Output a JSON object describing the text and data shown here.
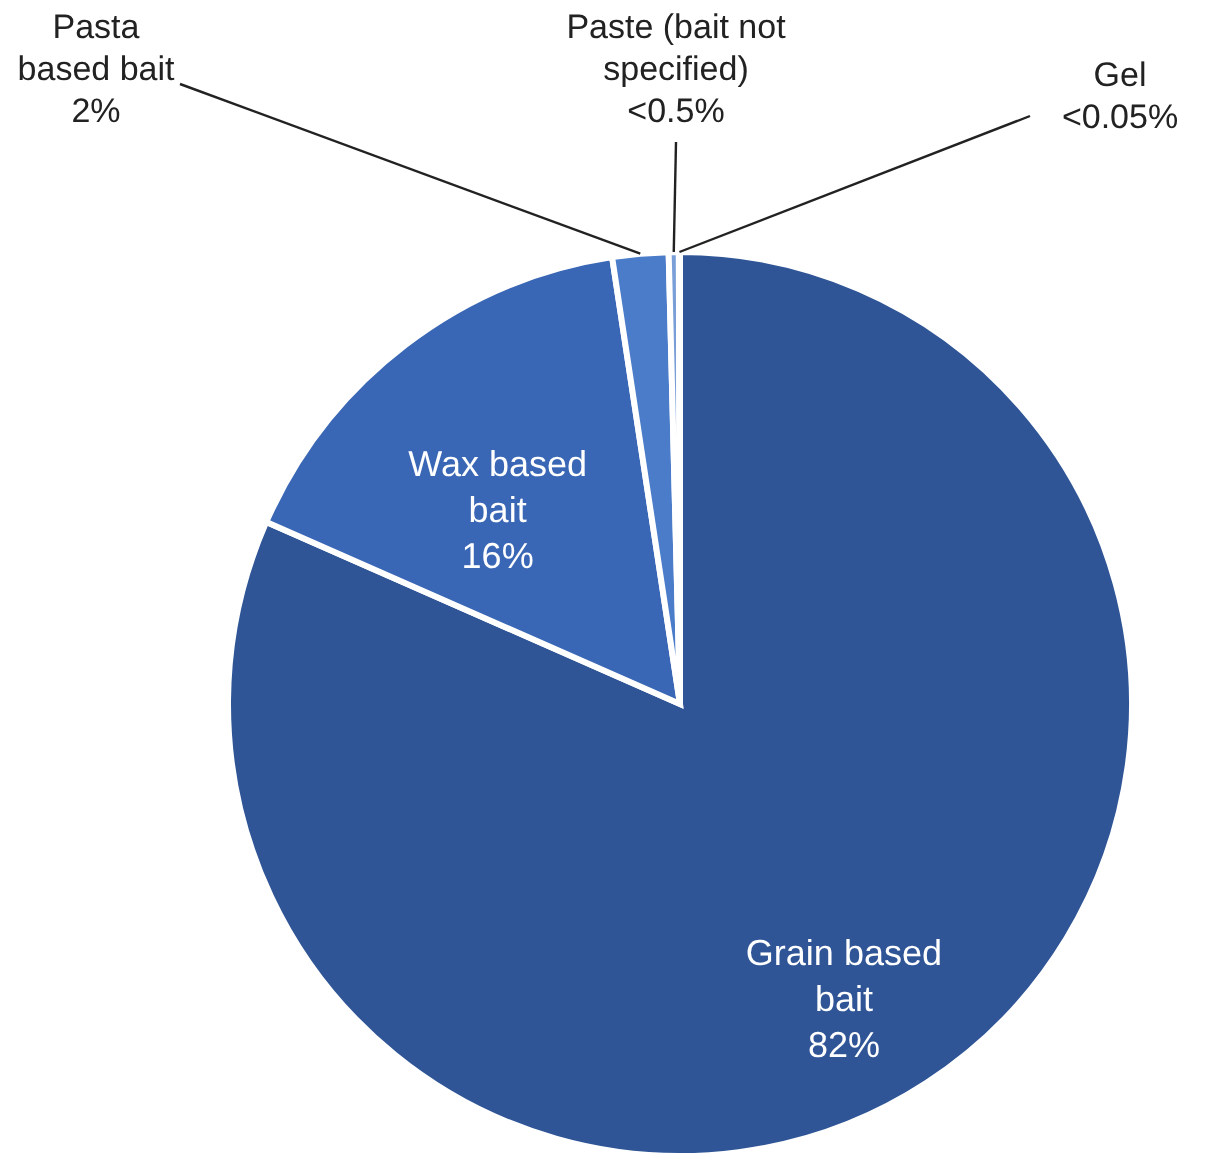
{
  "chart_data": {
    "type": "pie",
    "categories": [
      "Grain based bait",
      "Wax based bait",
      "Pasta based bait",
      "Paste (bait not specified)",
      "Gel"
    ],
    "values": [
      81.6,
      16,
      2,
      0.36,
      0.04
    ],
    "colors": [
      "#2f5597",
      "#3a67b5",
      "#4a7cc9",
      "#7a9fd8",
      "#a9c1e8"
    ],
    "value_labels": [
      "82%",
      "16%",
      "2%",
      "<0.5%",
      "<0.05%"
    ]
  }
}
